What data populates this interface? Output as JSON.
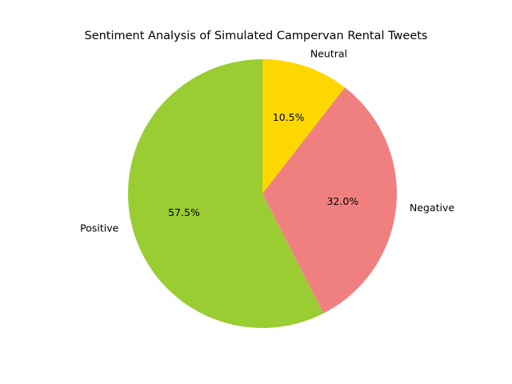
{
  "chart_data": {
    "type": "pie",
    "title": "Sentiment Analysis of Simulated Campervan Rental Tweets",
    "start_angle_deg": 90,
    "direction": "counterclockwise",
    "slices": [
      {
        "label": "Positive",
        "value": 57.5,
        "pct_label": "57.5%",
        "color": "#9acd32"
      },
      {
        "label": "Negative",
        "value": 32.0,
        "pct_label": "32.0%",
        "color": "#f08080"
      },
      {
        "label": "Neutral",
        "value": 10.5,
        "pct_label": "10.5%",
        "color": "#ffd700"
      }
    ]
  }
}
